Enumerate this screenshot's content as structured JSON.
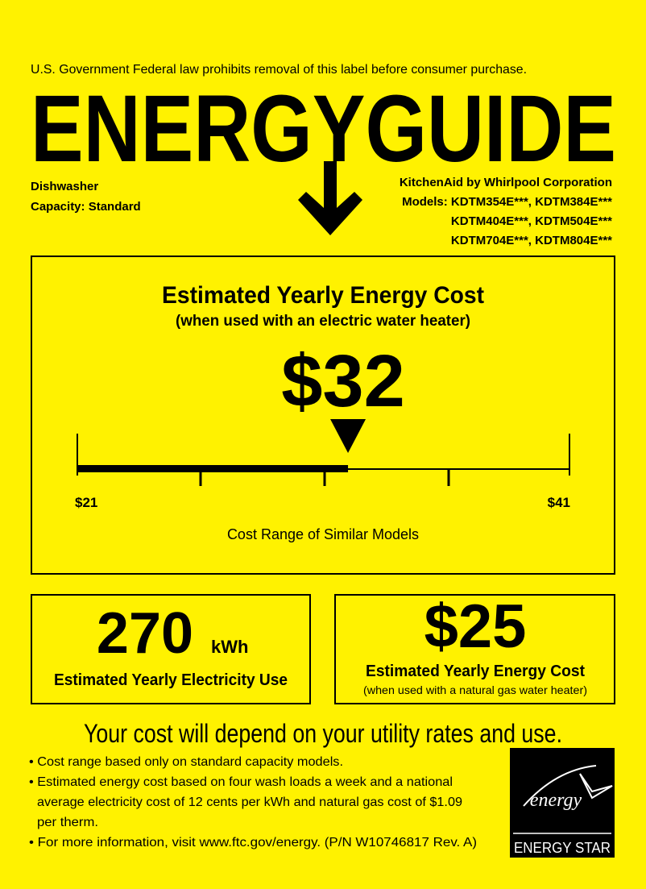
{
  "header": {
    "notice": "U.S. Government  Federal law prohibits removal of this label before consumer purchase.",
    "logo": "ENERGYGUIDE"
  },
  "product": {
    "type": "Dishwasher",
    "capacity": "Capacity: Standard"
  },
  "manufacturer": {
    "name": "KitchenAid by Whirlpool Corporation",
    "models": [
      "Models: KDTM354E***, KDTM384E***",
      "KDTM404E***, KDTM504E***",
      "KDTM704E***, KDTM804E***"
    ]
  },
  "main_cost": {
    "title": "Estimated Yearly Energy Cost",
    "subtitle": "(when used with an electric water heater)",
    "cost_scale": {
      "min": {
        "value": 21,
        "label": "$21"
      },
      "max": {
        "value": 41,
        "label": "$41"
      },
      "estimate": {
        "value": 32,
        "label": "$32"
      }
    },
    "range_caption": "Cost Range of Similar Models"
  },
  "electricity": {
    "amount": "270",
    "unit": "kWh",
    "label": "Estimated Yearly Electricity Use"
  },
  "gas_cost": {
    "amount": "$25",
    "label": "Estimated Yearly Energy Cost",
    "note": "(when used with a natural gas water heater)"
  },
  "footer": {
    "headline": "Your cost will depend on your utility rates and use.",
    "bullets": [
      "• Cost range based only on standard capacity models.",
      "• Estimated energy cost based on four wash loads a week and a national",
      "average electricity cost of 12 cents per kWh and natural gas cost of $1.09",
      "per therm.",
      "• For more information, visit www.ftc.gov/energy.     (P/N W10746817 Rev. A)"
    ],
    "energy_star": {
      "script": "energy",
      "name": "ENERGY STAR"
    }
  }
}
